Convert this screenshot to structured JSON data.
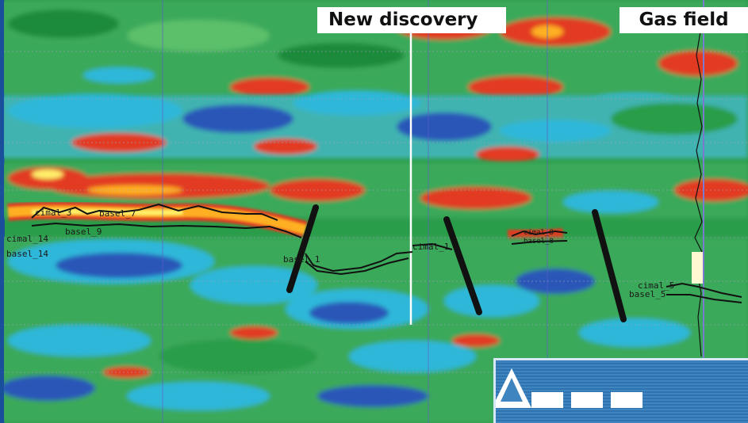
{
  "labels": {
    "new_discovery": "New discovery",
    "gas_field": "Gas field"
  },
  "horizons": {
    "cimal_3": "cimal_3",
    "basel_7": "basel_7",
    "basel_9": "basel_9",
    "cimal_14": "cimal_14",
    "basel_14": "basel_14",
    "basel_1": "basel_1",
    "cimal_1": "cimal_1",
    "cimal_8": "cimal_8",
    "basel_8": "basel_8",
    "cimal_5": "cimal_5",
    "basel_5": "basel_5"
  },
  "colors": {
    "strong_red": "#e23a22",
    "bright_yellow": "#fff06a",
    "green": "#2a9d4a",
    "cyan": "#2fb7d9",
    "blue": "#2a57b8",
    "label_bg": "#ffffff"
  },
  "logo": {
    "icon": "company-logo-icon"
  }
}
